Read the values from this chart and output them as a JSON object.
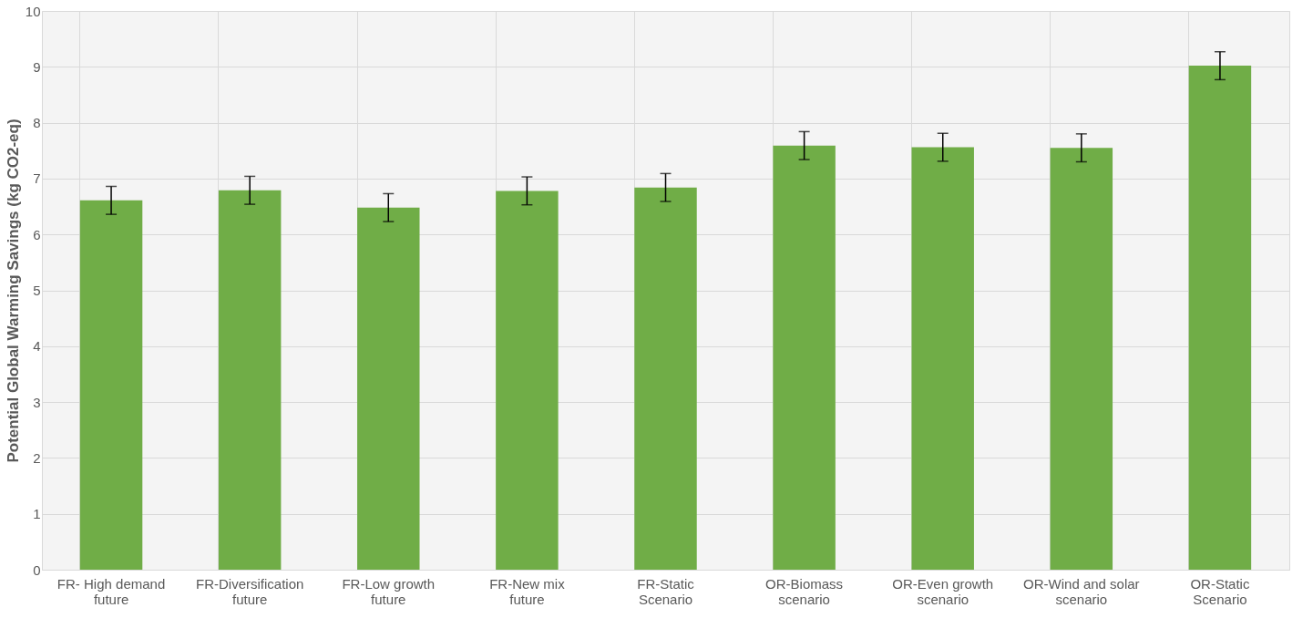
{
  "chart_data": {
    "type": "bar",
    "ylabel": "Potential Global Warming Savings (kg CO2-eq)",
    "categories": [
      "FR- High demand future",
      "FR-Diversification future",
      "FR-Low growth future",
      "FR-New mix future",
      "FR-Static Scenario",
      "OR-Biomass scenario",
      "OR-Even growth scenario",
      "OR-Wind and solar scenario",
      "OR-Static Scenario"
    ],
    "values": [
      6.61,
      6.79,
      6.48,
      6.78,
      6.84,
      7.59,
      7.56,
      7.55,
      9.02
    ],
    "errors": [
      0.25,
      0.25,
      0.25,
      0.25,
      0.25,
      0.25,
      0.25,
      0.25,
      0.25
    ],
    "color": "#70ad47",
    "ylim": [
      0,
      10
    ],
    "yticks": [
      0,
      1,
      2,
      3,
      4,
      5,
      6,
      7,
      8,
      9,
      10
    ],
    "grid": true
  }
}
